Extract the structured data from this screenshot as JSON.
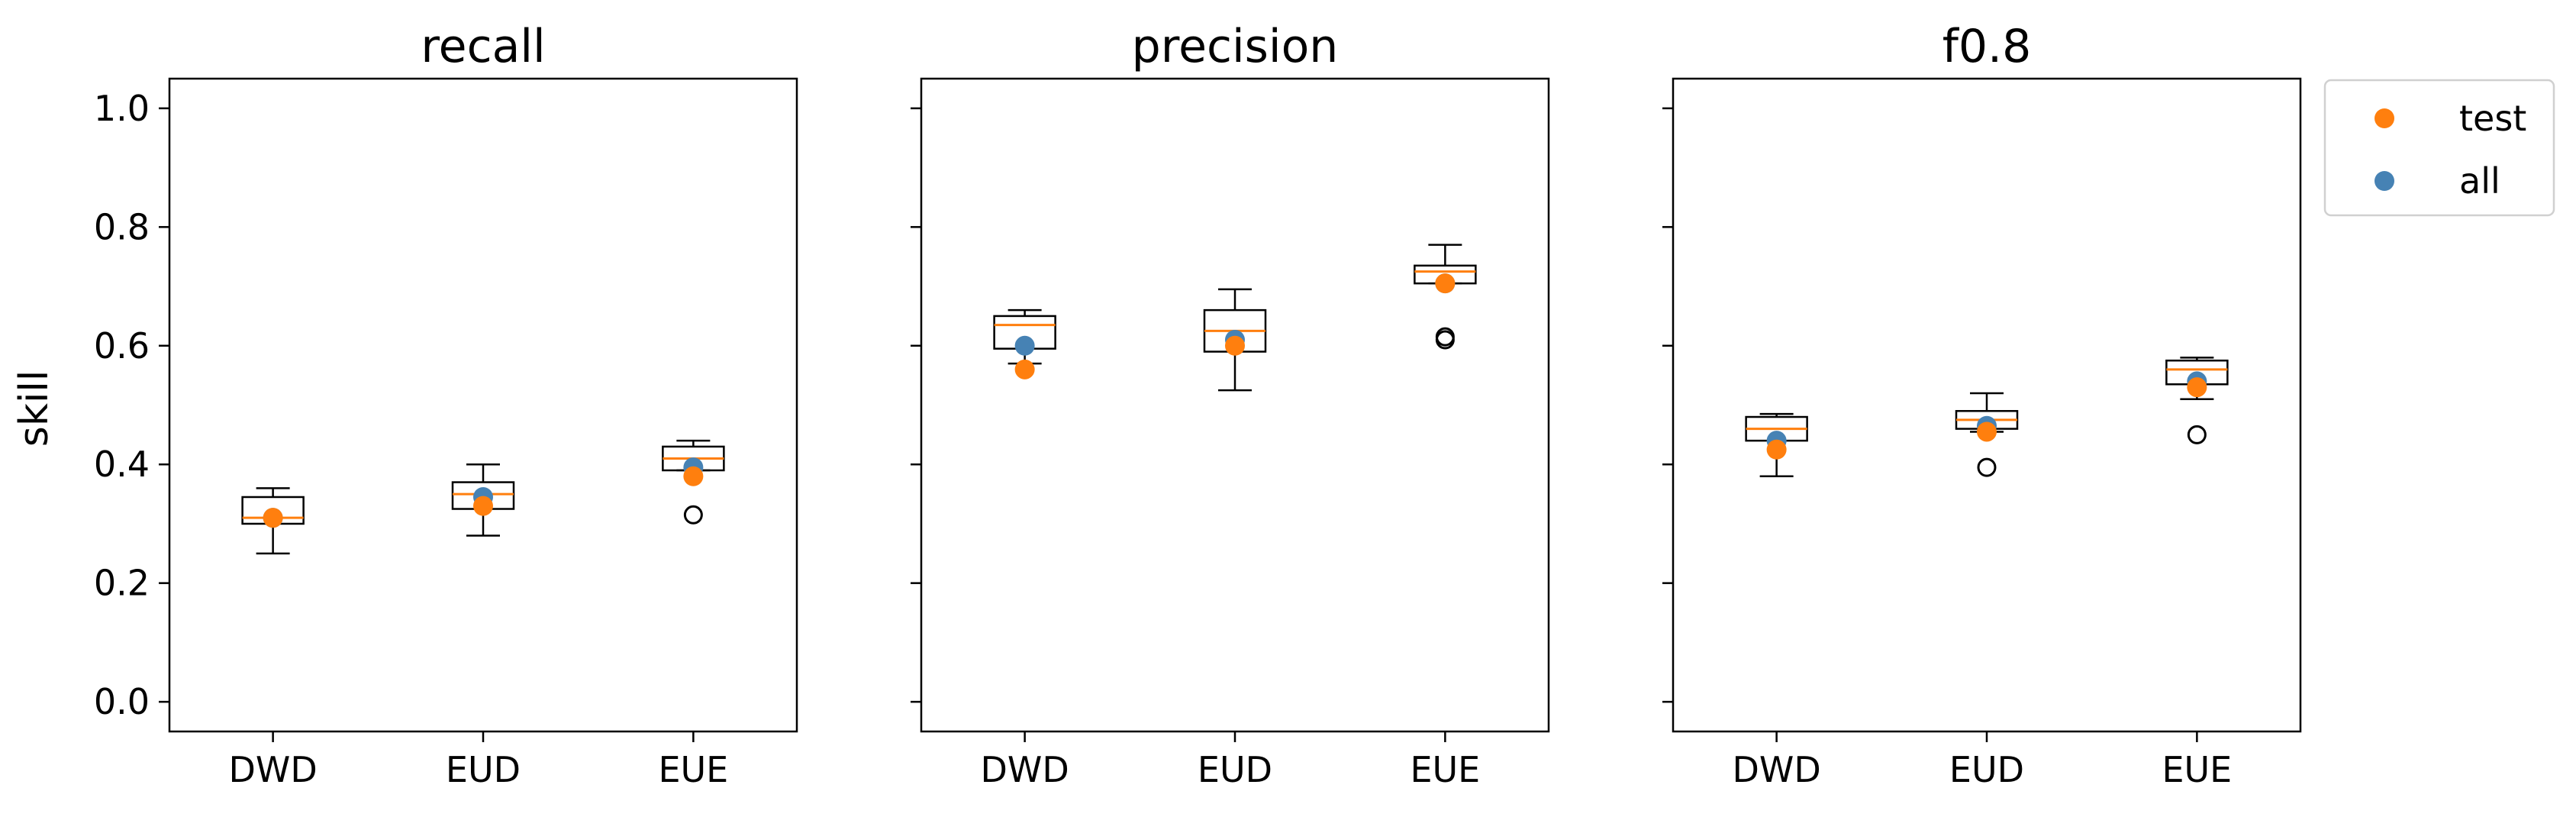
{
  "figure": {
    "ylabel": "skill",
    "legend": {
      "placement": "outside-top-right",
      "entries": [
        {
          "label": "test",
          "color": "#ff7f0e"
        },
        {
          "label": "all",
          "color": "#4682b4"
        }
      ]
    }
  },
  "chart_data": [
    {
      "type": "box",
      "title": "recall",
      "ylabel": "skill",
      "ylim": [
        -0.05,
        1.05
      ],
      "yticks": [
        "0.0",
        "0.2",
        "0.4",
        "0.6",
        "0.8",
        "1.0"
      ],
      "categories": [
        "DWD",
        "EUD",
        "EUE"
      ],
      "boxes": [
        {
          "category": "DWD",
          "whisker_low": 0.25,
          "q1": 0.3,
          "median": 0.31,
          "q3": 0.345,
          "whisker_high": 0.36,
          "outliers": []
        },
        {
          "category": "EUD",
          "whisker_low": 0.28,
          "q1": 0.325,
          "median": 0.35,
          "q3": 0.37,
          "whisker_high": 0.4,
          "outliers": []
        },
        {
          "category": "EUE",
          "whisker_low": 0.39,
          "q1": 0.39,
          "median": 0.41,
          "q3": 0.43,
          "whisker_high": 0.44,
          "outliers": [
            0.315
          ]
        }
      ],
      "series": [
        {
          "name": "test",
          "values": [
            0.31,
            0.33,
            0.38
          ]
        },
        {
          "name": "all",
          "values": [
            0.31,
            0.345,
            0.395
          ]
        }
      ]
    },
    {
      "type": "box",
      "title": "precision",
      "ylim": [
        -0.05,
        1.05
      ],
      "yticks": [
        "0.0",
        "0.2",
        "0.4",
        "0.6",
        "0.8",
        "1.0"
      ],
      "categories": [
        "DWD",
        "EUD",
        "EUE"
      ],
      "boxes": [
        {
          "category": "DWD",
          "whisker_low": 0.57,
          "q1": 0.595,
          "median": 0.635,
          "q3": 0.65,
          "whisker_high": 0.66,
          "outliers": []
        },
        {
          "category": "EUD",
          "whisker_low": 0.525,
          "q1": 0.59,
          "median": 0.625,
          "q3": 0.66,
          "whisker_high": 0.695,
          "outliers": []
        },
        {
          "category": "EUE",
          "whisker_low": 0.705,
          "q1": 0.705,
          "median": 0.725,
          "q3": 0.735,
          "whisker_high": 0.77,
          "outliers": [
            0.61,
            0.615
          ]
        }
      ],
      "series": [
        {
          "name": "test",
          "values": [
            0.56,
            0.6,
            0.705
          ]
        },
        {
          "name": "all",
          "values": [
            0.6,
            0.61,
            0.705
          ]
        }
      ]
    },
    {
      "type": "box",
      "title": "f0.8",
      "ylim": [
        -0.05,
        1.05
      ],
      "yticks": [
        "0.0",
        "0.2",
        "0.4",
        "0.6",
        "0.8",
        "1.0"
      ],
      "categories": [
        "DWD",
        "EUD",
        "EUE"
      ],
      "boxes": [
        {
          "category": "DWD",
          "whisker_low": 0.38,
          "q1": 0.44,
          "median": 0.46,
          "q3": 0.48,
          "whisker_high": 0.485,
          "outliers": []
        },
        {
          "category": "EUD",
          "whisker_low": 0.455,
          "q1": 0.46,
          "median": 0.475,
          "q3": 0.49,
          "whisker_high": 0.52,
          "outliers": [
            0.395
          ]
        },
        {
          "category": "EUE",
          "whisker_low": 0.51,
          "q1": 0.535,
          "median": 0.56,
          "q3": 0.575,
          "whisker_high": 0.58,
          "outliers": [
            0.45
          ]
        }
      ],
      "series": [
        {
          "name": "test",
          "values": [
            0.425,
            0.455,
            0.53
          ]
        },
        {
          "name": "all",
          "values": [
            0.44,
            0.465,
            0.54
          ]
        }
      ]
    }
  ]
}
